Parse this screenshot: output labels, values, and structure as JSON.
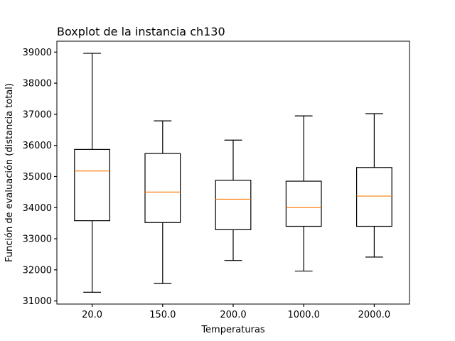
{
  "chart_data": {
    "type": "boxplot",
    "title": "Boxplot de la instancia ch130",
    "xlabel": "Temperaturas",
    "ylabel": "Función de evaluación (distancia total)",
    "ylim": [
      30900,
      39350
    ],
    "yticks": [
      31000,
      32000,
      33000,
      34000,
      35000,
      36000,
      37000,
      38000,
      39000
    ],
    "categories": [
      "20.0",
      "150.0",
      "200.0",
      "1000.0",
      "2000.0"
    ],
    "boxes": [
      {
        "category": "20.0",
        "whisker_low": 31280,
        "q1": 33580,
        "median": 35180,
        "q3": 35870,
        "whisker_high": 38960
      },
      {
        "category": "150.0",
        "whisker_low": 31560,
        "q1": 33520,
        "median": 34500,
        "q3": 35740,
        "whisker_high": 36790
      },
      {
        "category": "200.0",
        "whisker_low": 32300,
        "q1": 33290,
        "median": 34270,
        "q3": 34880,
        "whisker_high": 36170
      },
      {
        "category": "1000.0",
        "whisker_low": 31960,
        "q1": 33400,
        "median": 34000,
        "q3": 34850,
        "whisker_high": 36950
      },
      {
        "category": "2000.0",
        "whisker_low": 32410,
        "q1": 33400,
        "median": 34370,
        "q3": 35290,
        "whisker_high": 37020
      }
    ],
    "colors": {
      "box": "#000000",
      "median": "#ff7f0e"
    },
    "grid": false,
    "legend": "none"
  }
}
